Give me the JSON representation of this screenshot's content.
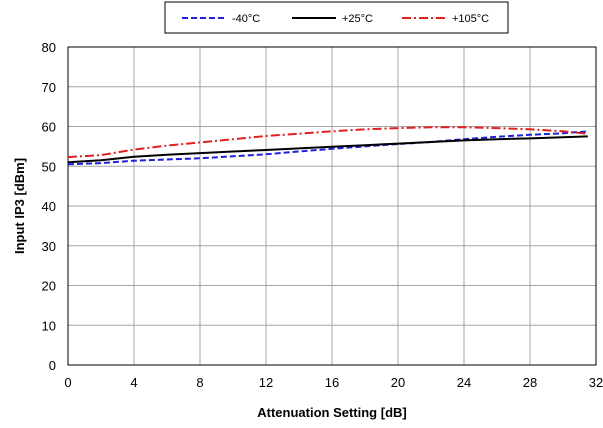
{
  "chart_data": {
    "type": "line",
    "xlabel": "Attenuation Setting [dB]",
    "ylabel": "Input IP3 [dBm]",
    "xlim": [
      0,
      32
    ],
    "ylim": [
      0,
      80
    ],
    "x_ticks": [
      0,
      4,
      8,
      12,
      16,
      20,
      24,
      28,
      32
    ],
    "y_ticks": [
      0,
      10,
      20,
      30,
      40,
      50,
      60,
      70,
      80
    ],
    "grid": true,
    "legend_position": "top",
    "x": [
      0,
      2,
      4,
      6,
      8,
      10,
      12,
      14,
      16,
      18,
      20,
      22,
      24,
      26,
      28,
      30,
      31.5
    ],
    "series": [
      {
        "name": "-40°C",
        "color": "#1f1fe0",
        "dash": "dashed",
        "values": [
          50.5,
          50.8,
          51.4,
          51.7,
          52.0,
          52.5,
          53.0,
          53.7,
          54.4,
          55.0,
          55.6,
          56.1,
          56.8,
          57.4,
          57.9,
          58.3,
          58.8
        ]
      },
      {
        "name": "+25°C",
        "color": "#000000",
        "dash": "solid",
        "values": [
          51.0,
          51.5,
          52.4,
          52.9,
          53.3,
          53.7,
          54.1,
          54.5,
          54.9,
          55.3,
          55.7,
          56.1,
          56.5,
          56.8,
          57.0,
          57.3,
          57.5
        ]
      },
      {
        "name": "+105°C",
        "color": "#e01f1f",
        "dash": "dashdot",
        "values": [
          52.3,
          52.8,
          54.2,
          55.2,
          56.0,
          56.8,
          57.6,
          58.2,
          58.8,
          59.3,
          59.6,
          59.8,
          59.8,
          59.6,
          59.3,
          58.8,
          58.2
        ]
      }
    ]
  }
}
